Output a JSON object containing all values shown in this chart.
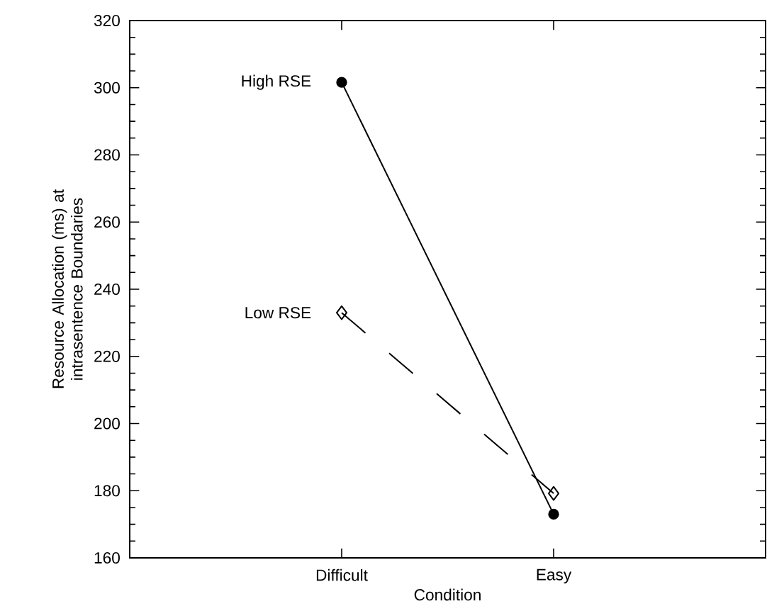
{
  "chart_data": {
    "type": "line",
    "xlabel": "Condition",
    "ylabel": "Resource Allocation (ms) at intrasentence Boundaries",
    "categories": [
      "Difficult",
      "Easy"
    ],
    "series": [
      {
        "name": "High RSE",
        "color": "#000000",
        "values": [
          301.6,
          173
        ],
        "marker": "circle",
        "line_style": "solid"
      },
      {
        "name": "Low RSE",
        "color": "#000000",
        "values": [
          233,
          179.2
        ],
        "marker": "diamond",
        "line_style": "dashed"
      }
    ],
    "ylim": [
      160,
      320
    ],
    "yticks": [
      160,
      180,
      200,
      220,
      240,
      260,
      280,
      300,
      320
    ],
    "grid": false,
    "legend": false
  }
}
